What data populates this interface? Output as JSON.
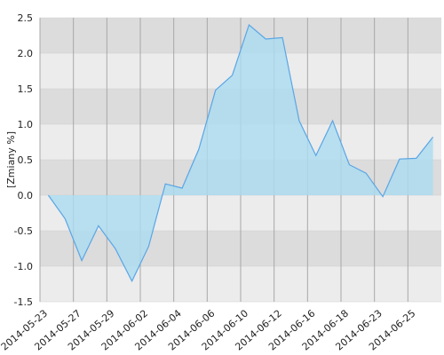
{
  "chart_data": {
    "type": "area",
    "y_label": "[Zmiany %]",
    "categories": [
      "2014-05-23",
      null,
      "2014-05-27",
      null,
      "2014-05-29",
      null,
      "2014-06-02",
      null,
      "2014-06-04",
      null,
      "2014-06-06",
      null,
      "2014-06-10",
      null,
      "2014-06-12",
      null,
      "2014-06-16",
      null,
      "2014-06-18",
      null,
      "2014-06-23",
      null,
      "2014-06-25",
      null
    ],
    "values": [
      0,
      -0.33,
      -0.92,
      -0.43,
      -0.75,
      -1.21,
      -0.72,
      0.16,
      0.1,
      0.65,
      1.48,
      1.69,
      2.4,
      2.2,
      2.22,
      1.05,
      0.56,
      1.05,
      0.43,
      0.31,
      -0.02,
      0.51,
      0.52,
      0.82
    ],
    "color": "#5aa5e6",
    "fill": "#aadcf0",
    "ylim": [
      -1.5,
      2.5
    ],
    "yticks": [
      2.5,
      {
        "value": 2,
        "label": "2.0"
      },
      1.5,
      {
        "value": 1,
        "label": "1.0"
      },
      0.5,
      {
        "value": 0,
        "label": "0.0"
      },
      -0.5,
      {
        "value": -1,
        "label": "-1.0"
      },
      -1.5
    ],
    "grid": true
  }
}
